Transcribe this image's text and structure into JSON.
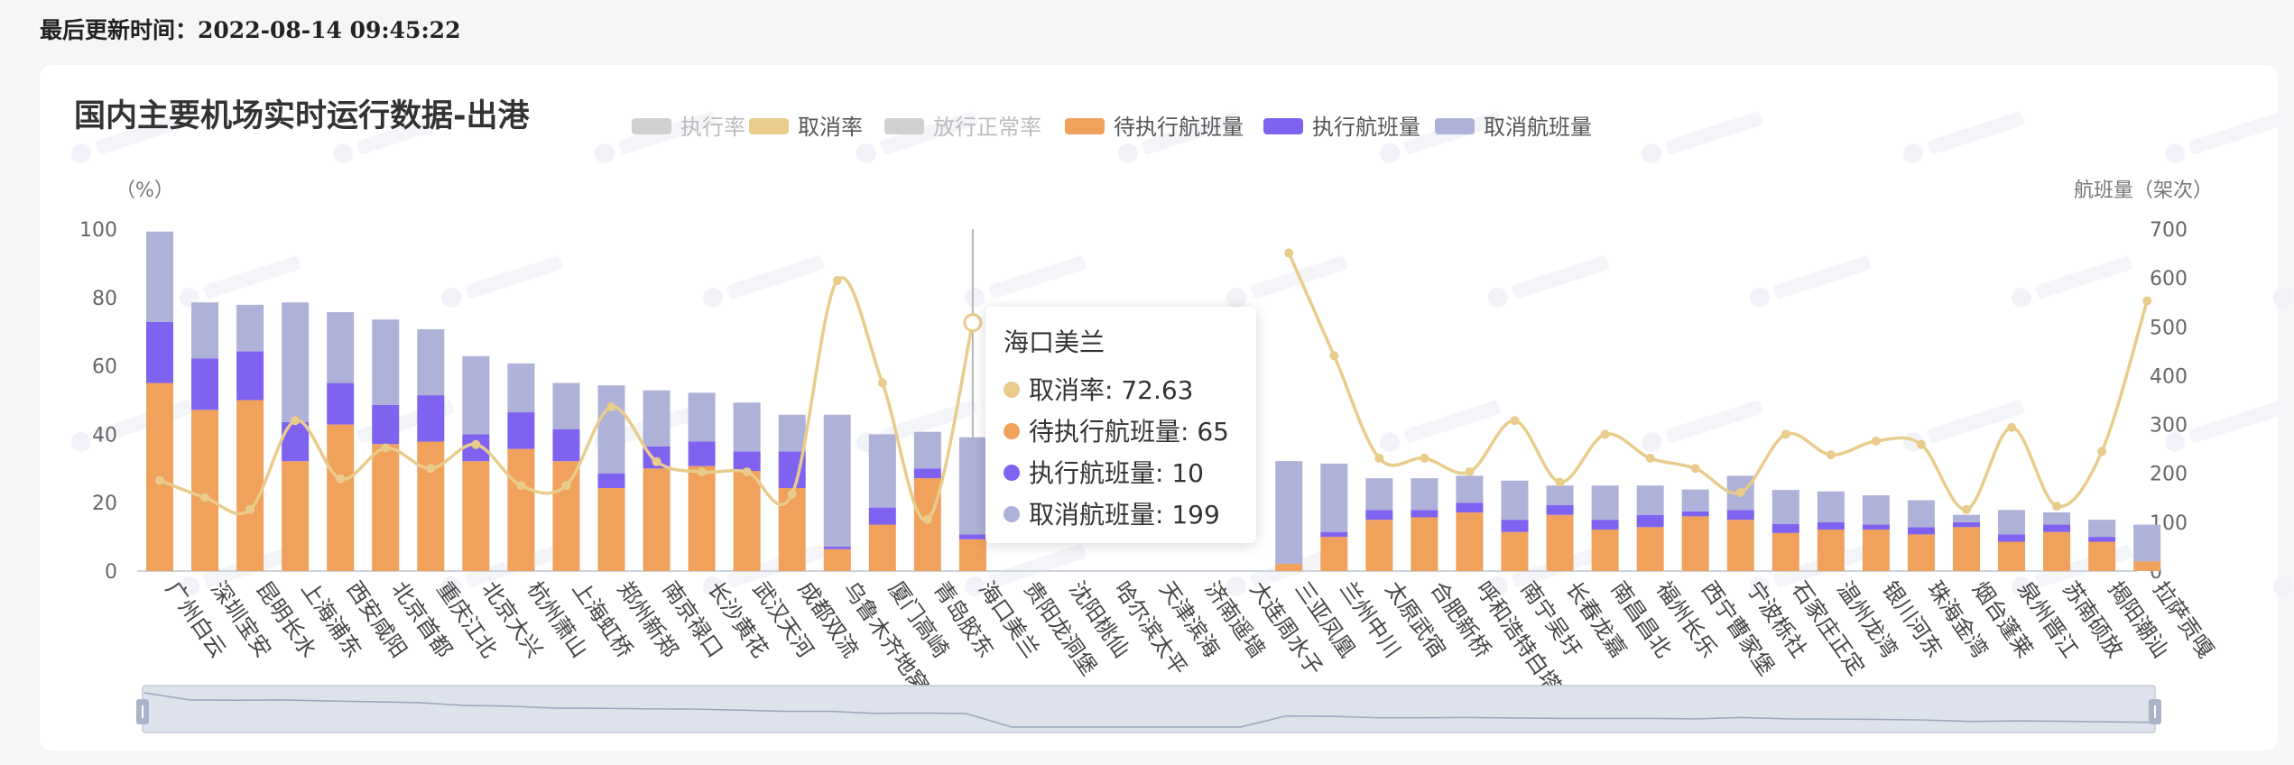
{
  "header": {
    "updated_label": "最后更新时间：",
    "updated_time": "2022-08-14 09:45:22"
  },
  "colors": {
    "exec_rate": "#c8c8c8",
    "cancel_rate": "#e9cc8b",
    "release_rate": "#cdcdcd",
    "pending": "#f0a15c",
    "executed": "#7f62f0",
    "cancelled": "#aeb1d8",
    "zoom_fill": "#dde2ec",
    "zoom_line": "#9aa6bd"
  },
  "tooltip": {
    "title": "海口美兰",
    "rows": [
      {
        "label": "取消率",
        "value": "72.63",
        "text": "取消率: 72.63",
        "color": "#e9cc8b"
      },
      {
        "label": "待执行航班量",
        "value": "65",
        "text": "待执行航班量: 65",
        "color": "#f0a15c"
      },
      {
        "label": "执行航班量",
        "value": "10",
        "text": "执行航班量: 10",
        "color": "#7f62f0"
      },
      {
        "label": "取消航班量",
        "value": "199",
        "text": "取消航班量: 199",
        "color": "#aeb1d8"
      }
    ]
  },
  "chart_data": {
    "type": "bar",
    "title": "国内主要机场实时运行数据-出港",
    "left_axis_label": "（%）",
    "right_axis_label": "航班量（架次）",
    "left_ylim": [
      0,
      100
    ],
    "left_ticks": [
      0,
      20,
      40,
      60,
      80,
      100
    ],
    "right_ylim": [
      0,
      700
    ],
    "right_ticks": [
      0,
      100,
      200,
      300,
      400,
      500,
      600,
      700
    ],
    "grid": false,
    "legend_position": "top",
    "legend": [
      {
        "name": "执行率",
        "color": "#c8c8c8",
        "shape": "rect",
        "disabled": true
      },
      {
        "name": "取消率",
        "color": "#e9cc8b",
        "shape": "rect",
        "disabled": false
      },
      {
        "name": "放行正常率",
        "color": "#cdcdcd",
        "shape": "rect",
        "disabled": true
      },
      {
        "name": "待执行航班量",
        "color": "#f0a15c",
        "shape": "rect",
        "disabled": false
      },
      {
        "name": "执行航班量",
        "color": "#7f62f0",
        "shape": "rect",
        "disabled": false
      },
      {
        "name": "取消航班量",
        "color": "#aeb1d8",
        "shape": "rect",
        "disabled": false
      }
    ],
    "categories": [
      "广州白云",
      "深圳宝安",
      "昆明长水",
      "上海浦东",
      "西安咸阳",
      "北京首都",
      "重庆江北",
      "北京大兴",
      "杭州萧山",
      "上海虹桥",
      "郑州新郑",
      "南京禄口",
      "长沙黄花",
      "武汉天河",
      "成都双流",
      "乌鲁木齐地窝堡",
      "厦门高崎",
      "青岛胶东",
      "海口美兰",
      "贵阳龙洞堡",
      "沈阳桃仙",
      "哈尔滨太平",
      "天津滨海",
      "济南遥墙",
      "大连周水子",
      "三亚凤凰",
      "兰州中川",
      "太原武宿",
      "合肥新桥",
      "呼和浩特白塔",
      "南宁吴圩",
      "长春龙嘉",
      "南昌昌北",
      "福州长乐",
      "西宁曹家堡",
      "宁波栎社",
      "石家庄正定",
      "温州龙湾",
      "银川河东",
      "珠海金湾",
      "烟台蓬莱",
      "泉州晋江",
      "苏南硕放",
      "揭阳潮汕",
      "拉萨贡嘎"
    ],
    "series": [
      {
        "name": "待执行航班量",
        "axis": "right",
        "stack": "flights",
        "values": [
          385,
          330,
          350,
          225,
          300,
          260,
          265,
          225,
          250,
          225,
          170,
          210,
          215,
          205,
          170,
          45,
          95,
          190,
          65,
          null,
          null,
          null,
          null,
          null,
          null,
          15,
          70,
          105,
          110,
          120,
          80,
          115,
          85,
          90,
          112,
          105,
          78,
          85,
          85,
          75,
          90,
          60,
          80,
          60,
          20
        ]
      },
      {
        "name": "执行航班量",
        "axis": "right",
        "stack": "flights",
        "values": [
          125,
          105,
          100,
          80,
          85,
          80,
          95,
          55,
          75,
          65,
          30,
          45,
          50,
          40,
          75,
          5,
          35,
          20,
          10,
          null,
          null,
          null,
          null,
          null,
          null,
          0,
          10,
          20,
          15,
          20,
          25,
          20,
          20,
          25,
          10,
          20,
          18,
          15,
          10,
          15,
          10,
          15,
          15,
          10,
          0
        ]
      },
      {
        "name": "取消航班量",
        "axis": "right",
        "stack": "flights",
        "values": [
          185,
          115,
          95,
          245,
          145,
          175,
          135,
          160,
          100,
          95,
          180,
          115,
          100,
          100,
          75,
          270,
          150,
          75,
          199,
          null,
          null,
          null,
          null,
          null,
          null,
          210,
          140,
          65,
          65,
          55,
          80,
          40,
          70,
          60,
          45,
          70,
          70,
          63,
          60,
          55,
          15,
          50,
          25,
          35,
          75
        ]
      },
      {
        "name": "取消率",
        "axis": "left",
        "type": "line",
        "values": [
          26.5,
          21.5,
          18,
          44,
          27,
          36,
          30,
          37,
          25,
          25,
          48,
          32,
          29,
          29,
          22.5,
          85,
          55,
          15,
          72.63,
          null,
          null,
          null,
          null,
          null,
          null,
          93,
          63,
          33,
          33,
          29,
          44,
          26,
          40,
          33,
          30,
          23,
          40,
          34,
          38,
          37,
          18,
          42,
          19,
          35,
          79
        ]
      }
    ],
    "focus_category": "海口美兰"
  }
}
